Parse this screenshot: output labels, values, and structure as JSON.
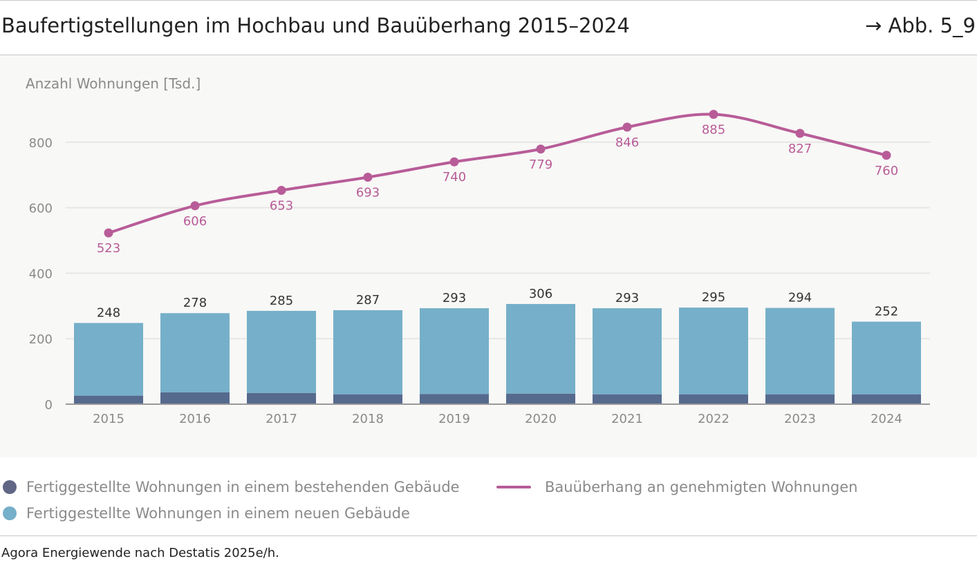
{
  "header": {
    "title": "Baufertigstellungen im Hochbau und Bauüberhang 2015–2024",
    "reference": "→ Abb. 5_9"
  },
  "chart_data": {
    "type": "bar",
    "ylabel": "Anzahl Wohnungen [Tsd.]",
    "ylim": [
      0,
      900
    ],
    "yticks": [
      0,
      200,
      400,
      600,
      800
    ],
    "grid": true,
    "categories": [
      "2015",
      "2016",
      "2017",
      "2018",
      "2019",
      "2020",
      "2021",
      "2022",
      "2023",
      "2024"
    ],
    "bar_totals": [
      248,
      278,
      285,
      287,
      293,
      306,
      293,
      295,
      294,
      252
    ],
    "series": [
      {
        "name": "Fertiggestellte Wohnungen in einem bestehenden Gebäude",
        "type": "bar-stacked",
        "color": "#566a8e",
        "values": [
          26,
          36,
          34,
          30,
          31,
          32,
          30,
          30,
          30,
          30
        ]
      },
      {
        "name": "Fertiggestellte Wohnungen in einem neuen Gebäude",
        "type": "bar-stacked",
        "color": "#76afc9",
        "values": [
          222,
          242,
          251,
          257,
          262,
          274,
          263,
          265,
          264,
          222
        ]
      },
      {
        "name": "Bauüberhang an genehmigten Wohnungen",
        "type": "line",
        "color": "#b85c98",
        "values": [
          523,
          606,
          653,
          693,
          740,
          779,
          846,
          885,
          827,
          760
        ]
      }
    ],
    "legend_placement": "bottom"
  },
  "source": "Agora Energiewende nach Destatis 2025e/h."
}
